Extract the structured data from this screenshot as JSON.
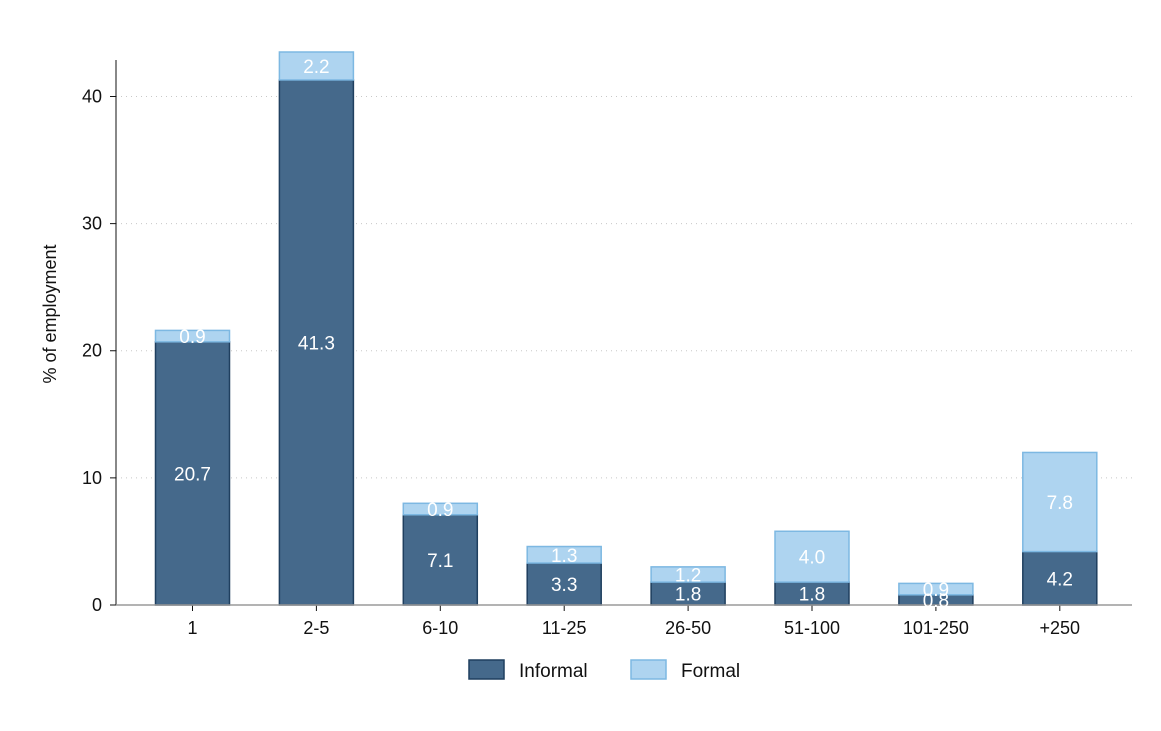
{
  "chart_data": {
    "type": "bar",
    "stacked": true,
    "title": "",
    "xlabel": "",
    "ylabel": "% of employment",
    "ylim": [
      0,
      43.5
    ],
    "yticks": [
      0,
      10,
      20,
      30,
      40
    ],
    "grid": true,
    "legend_position": "bottom",
    "categories": [
      "1",
      "2-5",
      "6-10",
      "11-25",
      "26-50",
      "51-100",
      "101-250",
      "+250"
    ],
    "series": [
      {
        "name": "Informal",
        "color": "#45698b",
        "edge_color": "#1f3f5f",
        "values": [
          20.7,
          41.3,
          7.1,
          3.3,
          1.8,
          1.8,
          0.8,
          4.2
        ],
        "labels": [
          "20.7",
          "41.3",
          "7.1",
          "3.3",
          "1.8",
          "1.8",
          "0.8",
          "4.2"
        ]
      },
      {
        "name": "Formal",
        "color": "#aed4f0",
        "edge_color": "#7db8e2",
        "values": [
          0.9,
          2.2,
          0.9,
          1.3,
          1.2,
          4.0,
          0.9,
          7.8
        ],
        "labels": [
          "0.9",
          "2.2",
          "0.9",
          "1.3",
          "1.2",
          "4.0",
          "0.9",
          "7.8"
        ]
      }
    ]
  }
}
